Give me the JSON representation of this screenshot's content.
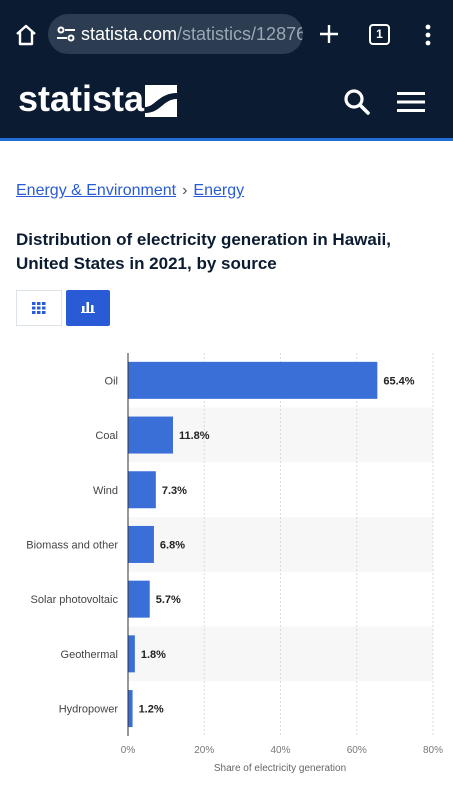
{
  "browser": {
    "url_host": "statista.com",
    "url_path": "/statistics/12876",
    "tab_count": "1",
    "icons": [
      "home-icon",
      "site-settings-icon",
      "plus-icon",
      "tabs-icon",
      "more-vert-icon"
    ]
  },
  "header": {
    "logo_text": "statista",
    "icons": [
      "search-icon",
      "hamburger-icon"
    ],
    "colors": {
      "background": "#0b1c32",
      "accent": "#1f6fd6"
    }
  },
  "breadcrumb": {
    "items": [
      "Energy & Environment",
      "Energy"
    ],
    "separator": "›"
  },
  "title": "Distribution of electricity generation in Hawaii, United States in 2021, by source",
  "view_toggle": {
    "options": [
      "table",
      "chart"
    ],
    "selected": "chart",
    "icons": [
      "table-grid-icon",
      "bar-chart-icon"
    ]
  },
  "chart_data": {
    "type": "bar",
    "orientation": "horizontal",
    "categories": [
      "Oil",
      "Coal",
      "Wind",
      "Biomass and other",
      "Solar photovoltaic",
      "Geothermal",
      "Hydropower"
    ],
    "values": [
      65.4,
      11.8,
      7.3,
      6.8,
      5.7,
      1.8,
      1.2
    ],
    "value_labels": [
      "65.4%",
      "11.8%",
      "7.3%",
      "6.8%",
      "5.7%",
      "1.8%",
      "1.2%"
    ],
    "xlabel": "Share of electricity generation",
    "xlim": [
      0,
      80
    ],
    "xticks": [
      0,
      20,
      40,
      60,
      80
    ],
    "xtick_labels": [
      "0%",
      "20%",
      "40%",
      "60%",
      "80%"
    ],
    "grid": true,
    "bar_color": "#3a6fd8"
  }
}
